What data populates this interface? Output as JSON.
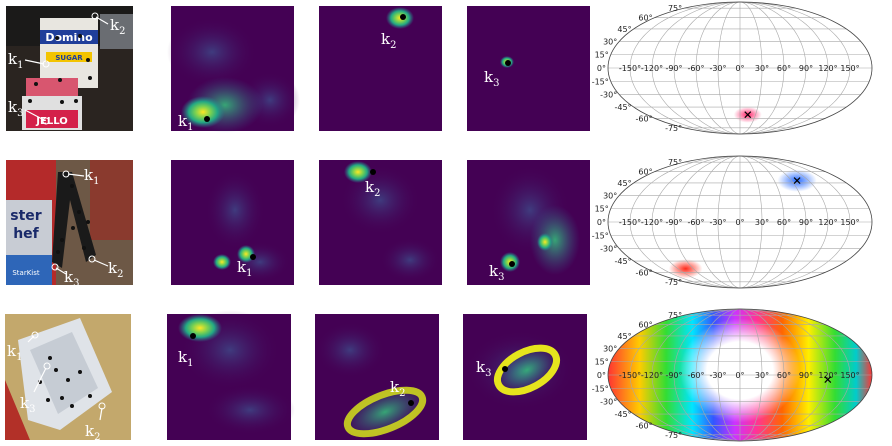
{
  "rows": [
    {
      "labels": [
        {
          "k": "k",
          "sub": "1"
        },
        {
          "k": "k",
          "sub": "2"
        },
        {
          "k": "k",
          "sub": "3"
        }
      ],
      "photo_labels": [
        {
          "k": "k",
          "sub": "1"
        },
        {
          "k": "k",
          "sub": "2"
        },
        {
          "k": "k",
          "sub": "3"
        }
      ],
      "photo_text": [
        "Domino",
        "SUGAR",
        "JELLO"
      ],
      "sphere_marker": {
        "lon": 15,
        "lat": -55
      },
      "sphere_blobs": [
        {
          "lon": 15,
          "lat": -55,
          "color": "#ff2a6d",
          "spread": 1
        }
      ]
    },
    {
      "labels": [
        {
          "k": "k",
          "sub": "1"
        },
        {
          "k": "k",
          "sub": "2"
        },
        {
          "k": "k",
          "sub": "3"
        }
      ],
      "photo_labels": [
        {
          "k": "k",
          "sub": "1"
        },
        {
          "k": "k",
          "sub": "2"
        },
        {
          "k": "k",
          "sub": "3"
        }
      ],
      "photo_text": [
        "ster",
        "hef",
        "StarKist"
      ],
      "sphere_marker": {
        "lon": 100,
        "lat": 48
      },
      "sphere_blobs": [
        {
          "lon": 100,
          "lat": 48,
          "color": "#2a6dff",
          "spread": 1.4
        },
        {
          "lon": -105,
          "lat": -55,
          "color": "#ff2a1a",
          "spread": 1.2
        }
      ]
    },
    {
      "labels": [
        {
          "k": "k",
          "sub": "1"
        },
        {
          "k": "k",
          "sub": "2"
        },
        {
          "k": "k",
          "sub": "3"
        }
      ],
      "photo_labels": [
        {
          "k": "k",
          "sub": "1"
        },
        {
          "k": "k",
          "sub": "3"
        },
        {
          "k": "k",
          "sub": "2"
        }
      ],
      "photo_text": [],
      "sphere_marker": {
        "lon": 120,
        "lat": -5
      },
      "sphere_blobs": "ring"
    }
  ],
  "sphere_ticks": {
    "lon": [
      "-150°",
      "-120°",
      "-90°",
      "-60°",
      "-30°",
      "0°",
      "30°",
      "60°",
      "90°",
      "120°",
      "150°"
    ],
    "lat": [
      "75°",
      "60°",
      "45°",
      "30°",
      "15°",
      "0°",
      "-15°",
      "-30°",
      "-45°",
      "-60°",
      "-75°"
    ]
  },
  "colors": {
    "viridis_bg": "#440154",
    "viridis_dark": "#3b2a7a",
    "viridis_mid": "#2a788e",
    "viridis_hot": "#fde725"
  }
}
